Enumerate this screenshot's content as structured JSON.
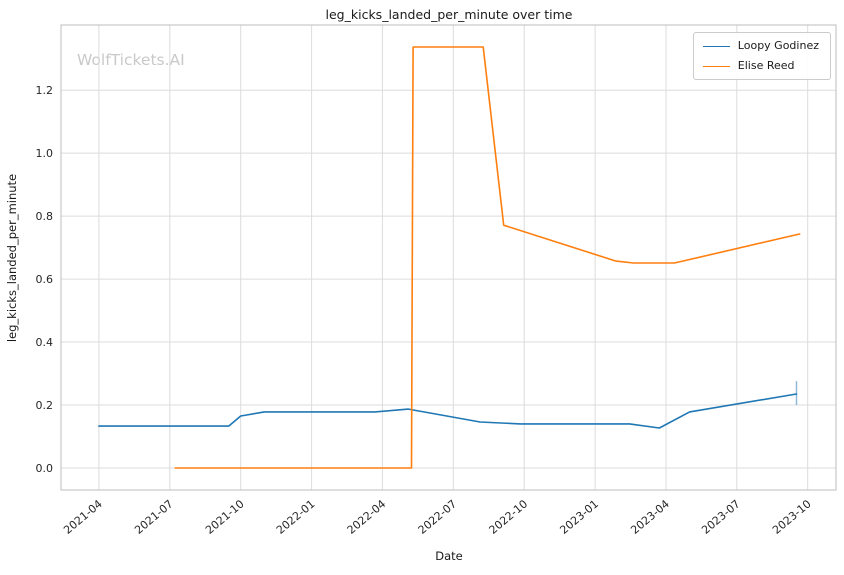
{
  "watermark": "WolfTickets.AI",
  "chart_data": {
    "type": "line",
    "title": "leg_kicks_landed_per_minute over time",
    "xlabel": "Date",
    "ylabel": "leg_kicks_landed_per_minute",
    "legend_position": "upper right",
    "grid": true,
    "grid_color": "#dcdcdc",
    "frame_color": "#bdbdbd",
    "tick_color": "#262626",
    "x_ticks": [
      "2021-04",
      "2021-07",
      "2021-10",
      "2022-01",
      "2022-04",
      "2022-07",
      "2022-10",
      "2023-01",
      "2023-04",
      "2023-07",
      "2023-10"
    ],
    "y_ticks": [
      0.0,
      0.2,
      0.4,
      0.6,
      0.8,
      1.0,
      1.2
    ],
    "ylim": [
      -0.07,
      1.407
    ],
    "x_range": [
      "2021-02-13",
      "2023-11-07"
    ],
    "series": [
      {
        "name": "Loopy Godinez",
        "color": "#1f77b4",
        "points": [
          [
            "2021-04-01",
            0.133
          ],
          [
            "2021-09-16",
            0.133
          ],
          [
            "2021-10-01",
            0.165
          ],
          [
            "2021-11-01",
            0.178
          ],
          [
            "2022-03-22",
            0.178
          ],
          [
            "2022-05-04",
            0.187
          ],
          [
            "2022-08-05",
            0.146
          ],
          [
            "2022-09-26",
            0.14
          ],
          [
            "2023-02-15",
            0.14
          ],
          [
            "2023-03-23",
            0.127
          ],
          [
            "2023-05-01",
            0.178
          ],
          [
            "2023-09-17",
            0.235
          ]
        ],
        "error_bar": {
          "date": "2023-09-17",
          "low": 0.2,
          "high": 0.276
        }
      },
      {
        "name": "Elise Reed",
        "color": "#ff7f0e",
        "points": [
          [
            "2021-07-08",
            0.0
          ],
          [
            "2022-05-08",
            0.0
          ],
          [
            "2022-05-10",
            1.337
          ],
          [
            "2022-08-09",
            1.337
          ],
          [
            "2022-09-05",
            0.771
          ],
          [
            "2023-01-28",
            0.657
          ],
          [
            "2023-02-20",
            0.651
          ],
          [
            "2023-04-12",
            0.651
          ],
          [
            "2023-09-21",
            0.743
          ]
        ]
      }
    ]
  }
}
